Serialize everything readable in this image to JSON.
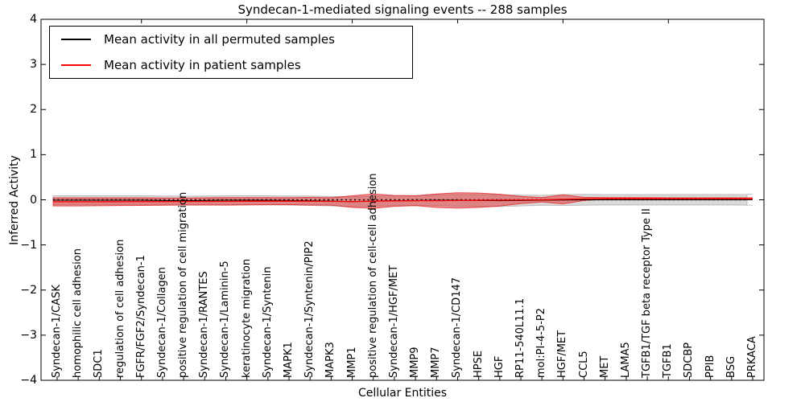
{
  "chart_data": {
    "type": "line",
    "title": "Syndecan-1-mediated signaling events -- 288 samples",
    "xlabel": "Cellular Entities",
    "ylabel": "Inferred Activity",
    "ylim": [
      -4,
      4
    ],
    "yticks": [
      4,
      3,
      2,
      1,
      0,
      -1,
      -2,
      -3,
      -4
    ],
    "grid": false,
    "legend_position": "upper-left",
    "categories": [
      "Syndecan-1/CASK",
      "homophilic cell adhesion",
      "SDC1",
      "regulation of cell adhesion",
      "FGFR/FGF2/Syndecan-1",
      "Syndecan-1/Collagen",
      "positive regulation of cell migration",
      "Syndecan-1/RANTES",
      "Syndecan-1/Laminin-5",
      "keratinocyte migration",
      "Syndecan-1/Syntenin",
      "MAPK1",
      "Syndecan-1/Syntenin/PIP2",
      "MAPK3",
      "MMP1",
      "positive regulation of cell-cell adhesion",
      "Syndecan-1/HGF/MET",
      "MMP9",
      "MMP7",
      "Syndecan-1/CD147",
      "HPSE",
      "HGF",
      "RP11-540L11.1",
      "mol:PI-4-5-P2",
      "HGF/MET",
      "CCL5",
      "MET",
      "LAMA5",
      "TGFB1/TGF beta receptor Type II",
      "TGFB1",
      "SDCBP",
      "PPIB",
      "BSG",
      "PRKACA"
    ],
    "series": [
      {
        "name": "Mean activity in all permuted samples",
        "color": "#000000",
        "style": "solid",
        "values": [
          -0.01,
          -0.01,
          -0.01,
          -0.01,
          -0.01,
          -0.015,
          -0.02,
          -0.015,
          -0.01,
          -0.01,
          -0.012,
          -0.015,
          -0.02,
          -0.03,
          -0.04,
          -0.03,
          -0.02,
          -0.015,
          -0.012,
          -0.01,
          -0.015,
          -0.02,
          -0.015,
          -0.01,
          -0.005,
          0,
          0,
          0,
          0,
          0,
          0,
          0,
          0,
          0
        ]
      },
      {
        "name": "Mean activity in patient samples",
        "color": "#ff0000",
        "style": "solid",
        "values": [
          -0.045,
          -0.045,
          -0.044,
          -0.042,
          -0.04,
          -0.04,
          -0.038,
          -0.036,
          -0.035,
          -0.032,
          -0.03,
          -0.03,
          -0.032,
          -0.035,
          -0.04,
          -0.03,
          -0.025,
          -0.02,
          -0.02,
          -0.015,
          -0.01,
          -0.008,
          -0.005,
          0,
          0.01,
          0.02,
          0.028,
          0.03,
          0.03,
          0.03,
          0.03,
          0.03,
          0.03,
          0.03
        ]
      }
    ],
    "reference_line": {
      "value": 0,
      "color": "#000000",
      "style": "dotted"
    },
    "bands": [
      {
        "name": "permuted samples range",
        "color": "#969696",
        "fill_opacity": 0.35,
        "edge_opacity": 0.55,
        "center_series": 0,
        "half_widths": [
          0.1,
          0.1,
          0.1,
          0.1,
          0.1,
          0.1,
          0.1,
          0.1,
          0.1,
          0.1,
          0.1,
          0.1,
          0.105,
          0.105,
          0.11,
          0.11,
          0.11,
          0.11,
          0.12,
          0.13,
          0.13,
          0.13,
          0.12,
          0.11,
          0.12,
          0.12,
          0.115,
          0.115,
          0.115,
          0.115,
          0.115,
          0.115,
          0.115,
          0.12
        ]
      },
      {
        "name": "patient samples range",
        "color": "#e41a1c",
        "fill_opacity": 0.45,
        "edge_opacity": 0.75,
        "center_series": 1,
        "half_widths": [
          0.09,
          0.09,
          0.088,
          0.086,
          0.084,
          0.08,
          0.076,
          0.08,
          0.084,
          0.082,
          0.079,
          0.076,
          0.086,
          0.082,
          0.13,
          0.16,
          0.12,
          0.11,
          0.15,
          0.17,
          0.16,
          0.13,
          0.08,
          0.05,
          0.1,
          0.035,
          0.02,
          0.018,
          0.016,
          0.015,
          0.015,
          0.015,
          0.015,
          0.015
        ]
      }
    ],
    "x_major_tick_indices": [
      4,
      9,
      14,
      19,
      24,
      29
    ]
  }
}
